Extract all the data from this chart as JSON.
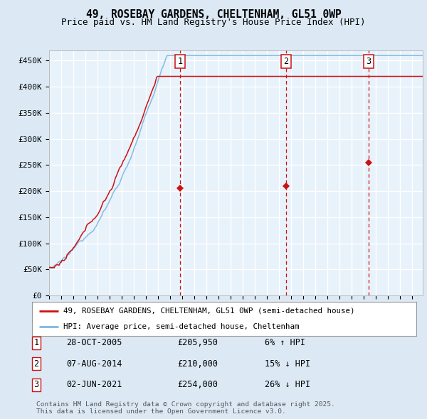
{
  "title": "49, ROSEBAY GARDENS, CHELTENHAM, GL51 0WP",
  "subtitle": "Price paid vs. HM Land Registry's House Price Index (HPI)",
  "ylabel_ticks": [
    "£0",
    "£50K",
    "£100K",
    "£150K",
    "£200K",
    "£250K",
    "£300K",
    "£350K",
    "£400K",
    "£450K"
  ],
  "ytick_values": [
    0,
    50000,
    100000,
    150000,
    200000,
    250000,
    300000,
    350000,
    400000,
    450000
  ],
  "ylim": [
    0,
    470000
  ],
  "xlim_start": 1995.0,
  "xlim_end": 2025.9,
  "background_color": "#dce9f5",
  "plot_bg_color": "#e8f2fb",
  "grid_color": "#ffffff",
  "hpi_color": "#7fb8e0",
  "price_color": "#cc1111",
  "vline_color": "#cc1111",
  "sale1_x": 2005.83,
  "sale2_x": 2014.6,
  "sale3_x": 2021.42,
  "sale1_y": 205950,
  "sale2_y": 210000,
  "sale3_y": 254000,
  "legend_label_price": "49, ROSEBAY GARDENS, CHELTENHAM, GL51 0WP (semi-detached house)",
  "legend_label_hpi": "HPI: Average price, semi-detached house, Cheltenham",
  "table_rows": [
    {
      "num": "1",
      "date": "28-OCT-2005",
      "price": "£205,950",
      "hpi": "6% ↑ HPI"
    },
    {
      "num": "2",
      "date": "07-AUG-2014",
      "price": "£210,000",
      "hpi": "15% ↓ HPI"
    },
    {
      "num": "3",
      "date": "02-JUN-2021",
      "price": "£254,000",
      "hpi": "26% ↓ HPI"
    }
  ],
  "footer": "Contains HM Land Registry data © Crown copyright and database right 2025.\nThis data is licensed under the Open Government Licence v3.0.",
  "title_fontsize": 10.5,
  "subtitle_fontsize": 9,
  "tick_fontsize": 8,
  "legend_fontsize": 7.8,
  "table_fontsize": 8.5,
  "footer_fontsize": 6.8
}
